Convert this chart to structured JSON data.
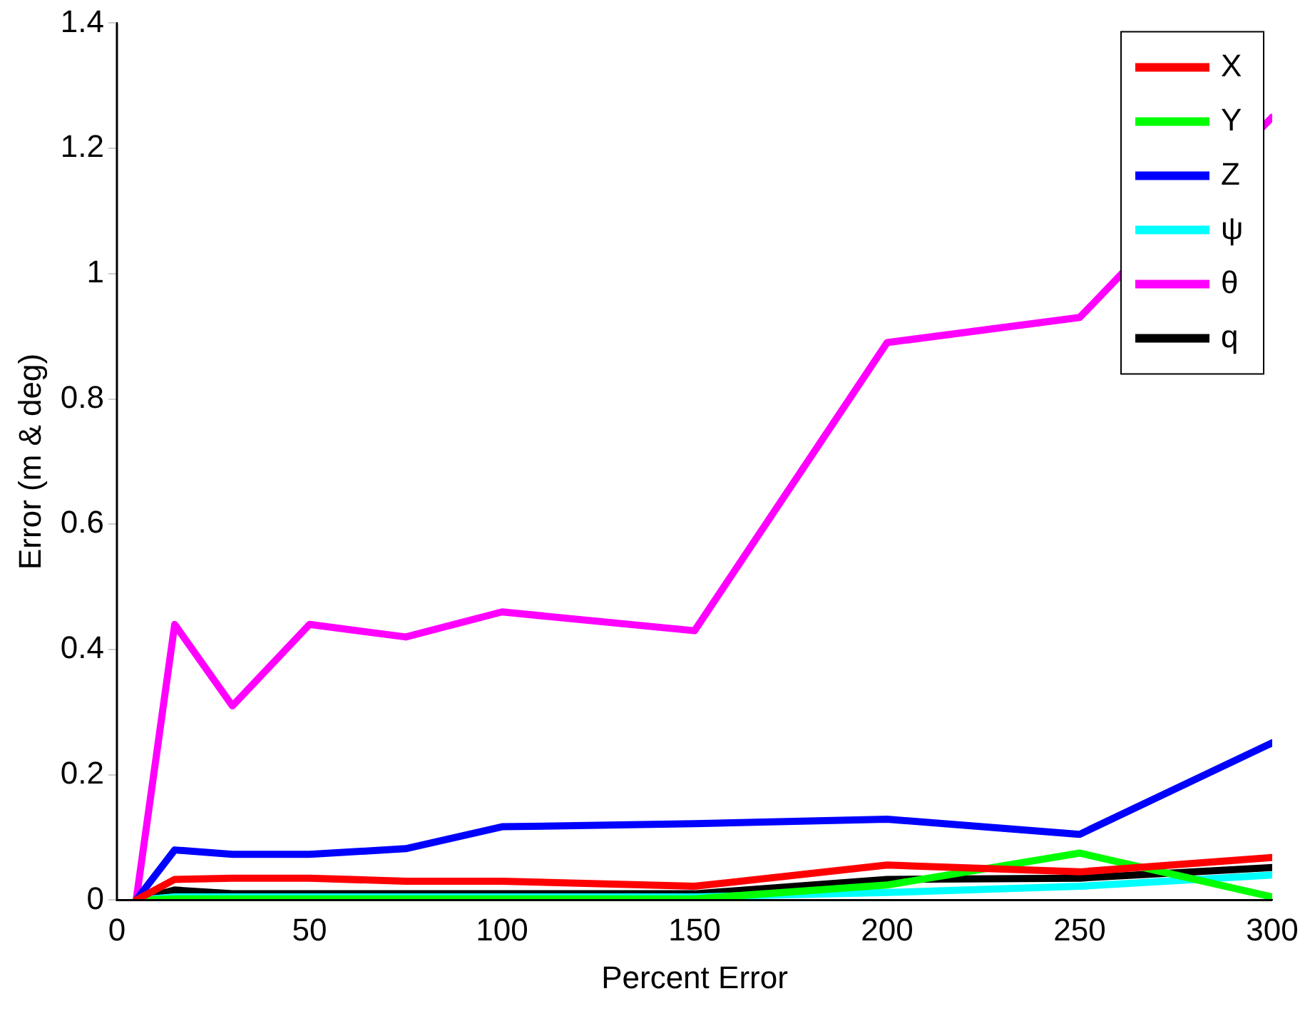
{
  "chart_data": {
    "type": "line",
    "xlabel": "Percent Error",
    "ylabel": "Error (m & deg)",
    "x": [
      5,
      15,
      30,
      50,
      75,
      100,
      150,
      200,
      250,
      300
    ],
    "xlim": [
      0,
      300
    ],
    "xticks": [
      0,
      50,
      100,
      150,
      200,
      250,
      300
    ],
    "ylim": [
      0,
      1.4
    ],
    "yticks": [
      0,
      0.2,
      0.4,
      0.6,
      0.8,
      1,
      1.2,
      1.4
    ],
    "grid": false,
    "legend": "top right",
    "marker": "none",
    "line_style": "solid",
    "series": [
      {
        "name": "X",
        "color": "#ff0000",
        "values": [
          0,
          0.033,
          0.035,
          0.035,
          0.03,
          0.03,
          0.022,
          0.056,
          0.045,
          0.068
        ]
      },
      {
        "name": "Y",
        "color": "#00ff00",
        "values": [
          0,
          0.002,
          0.002,
          0.002,
          0.002,
          0.002,
          0.002,
          0.024,
          0.075,
          0.005
        ]
      },
      {
        "name": "Z",
        "color": "#0000ff",
        "values": [
          0,
          0.08,
          0.073,
          0.073,
          0.082,
          0.117,
          0.122,
          0.129,
          0.105,
          0.251
        ]
      },
      {
        "name": "ψ",
        "color": "#00ffff",
        "values": [
          0,
          0.005,
          0.005,
          0.005,
          0.005,
          0.005,
          0.005,
          0.012,
          0.022,
          0.04
        ]
      },
      {
        "name": "θ",
        "color": "#ff00ff",
        "values": [
          0,
          0.44,
          0.31,
          0.44,
          0.42,
          0.46,
          0.43,
          0.89,
          0.93,
          1.25
        ]
      },
      {
        "name": "q",
        "color": "#000000",
        "values": [
          0,
          0.016,
          0.01,
          0.01,
          0.01,
          0.01,
          0.01,
          0.033,
          0.035,
          0.052
        ]
      }
    ]
  }
}
